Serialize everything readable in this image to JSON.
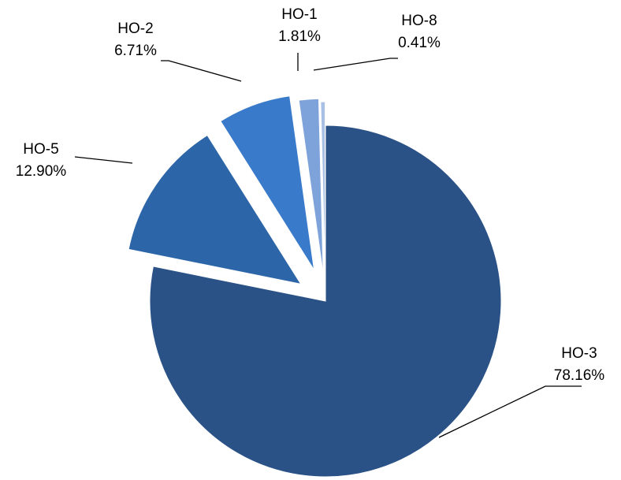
{
  "chart_data": {
    "type": "pie",
    "exploded": true,
    "slices": [
      {
        "name": "HO-3",
        "label": "HO-3",
        "value_label": "78.16%",
        "value": 78.16,
        "color": "#2A5286"
      },
      {
        "name": "HO-5",
        "label": "HO-5",
        "value_label": "12.90%",
        "value": 12.9,
        "color": "#2C66A8"
      },
      {
        "name": "HO-2",
        "label": "HO-2",
        "value_label": "6.71%",
        "value": 6.71,
        "color": "#3A7ACB"
      },
      {
        "name": "HO-1",
        "label": "HO-1",
        "value_label": "1.81%",
        "value": 1.81,
        "color": "#7EA3DA"
      },
      {
        "name": "HO-8",
        "label": "HO-8",
        "value_label": "0.41%",
        "value": 0.41,
        "color": "#A8C0E4"
      }
    ]
  }
}
